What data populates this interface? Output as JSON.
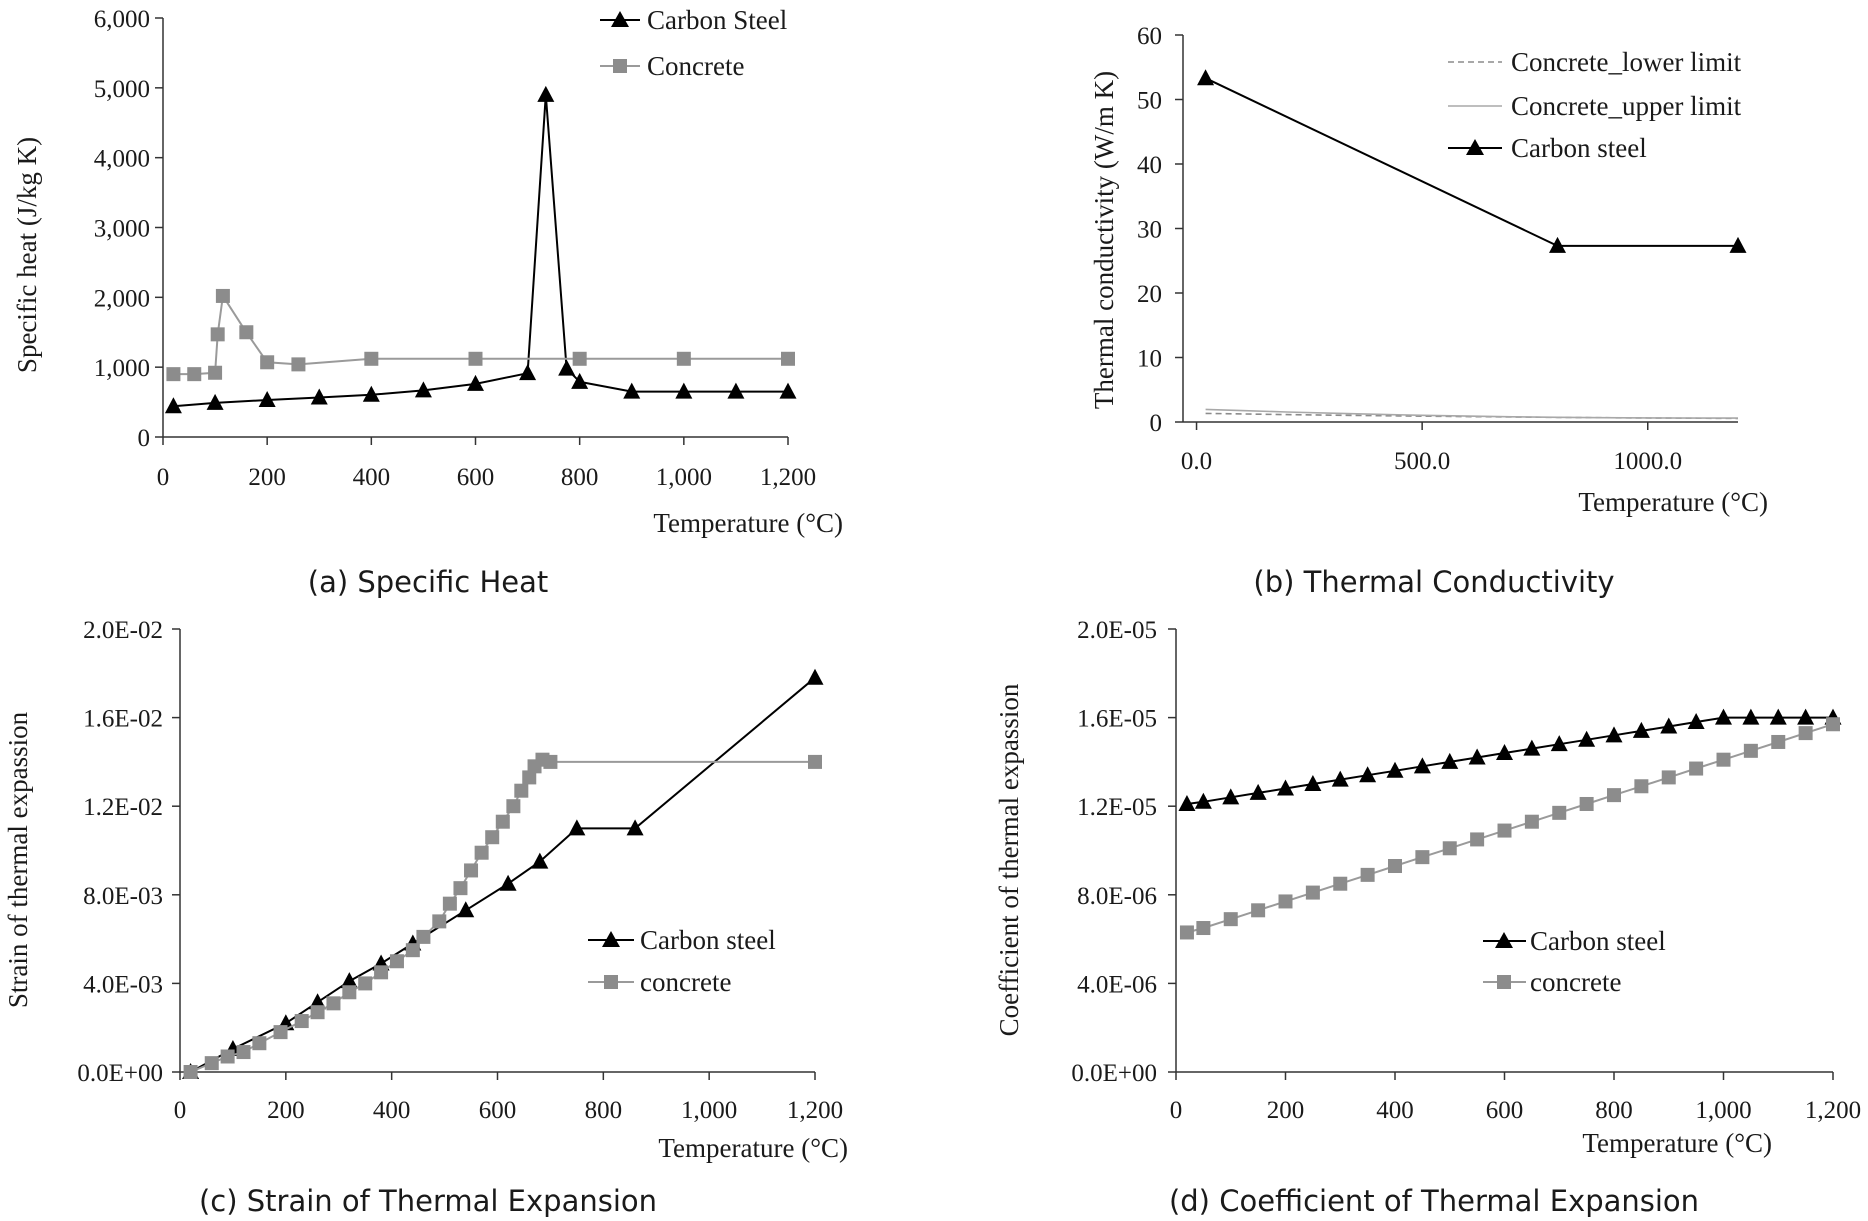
{
  "colors": {
    "steel": "#000000",
    "concrete_marker": "#8c8c8c",
    "concrete_line": "#9a9a9a",
    "concrete_lower": "#8c8c8c",
    "concrete_upper": "#a8a8a8",
    "axis": "#333333"
  },
  "chart_data": [
    {
      "id": "a",
      "type": "line",
      "caption": "(a) Specific Heat",
      "xlabel": "Temperature (°C)",
      "ylabel": "Specific heat (J/kg K)",
      "xlim": [
        0,
        1200
      ],
      "ylim": [
        0,
        6000
      ],
      "xticks": [
        {
          "v": 0,
          "label": "0"
        },
        {
          "v": 200,
          "label": "200"
        },
        {
          "v": 400,
          "label": "400"
        },
        {
          "v": 600,
          "label": "600"
        },
        {
          "v": 800,
          "label": "800"
        },
        {
          "v": 1000,
          "label": "1,000"
        },
        {
          "v": 1200,
          "label": "1,200"
        }
      ],
      "yticks": [
        {
          "v": 0,
          "label": "0"
        },
        {
          "v": 1000,
          "label": "1,000"
        },
        {
          "v": 2000,
          "label": "2,000"
        },
        {
          "v": 3000,
          "label": "3,000"
        },
        {
          "v": 4000,
          "label": "4,000"
        },
        {
          "v": 5000,
          "label": "5,000"
        },
        {
          "v": 6000,
          "label": "6,000"
        }
      ],
      "legend_position": "top-right",
      "series": [
        {
          "name": "Carbon Steel",
          "marker": "triangle",
          "color_key": "steel",
          "x": [
            20,
            100,
            200,
            300,
            400,
            500,
            600,
            700,
            735,
            775,
            800,
            900,
            1000,
            1100,
            1200
          ],
          "y": [
            440,
            488,
            530,
            565,
            605,
            667,
            760,
            914,
            4900,
            980,
            790,
            650,
            650,
            650,
            650
          ]
        },
        {
          "name": "Concrete",
          "marker": "square",
          "color_key": "concrete_marker",
          "x": [
            20,
            60,
            100,
            105,
            115,
            160,
            200,
            260,
            400,
            600,
            800,
            1000,
            1200
          ],
          "y": [
            900,
            900,
            920,
            1470,
            2020,
            1500,
            1070,
            1040,
            1120,
            1120,
            1120,
            1120,
            1120
          ]
        }
      ]
    },
    {
      "id": "b",
      "type": "line",
      "caption": "(b) Thermal Conductivity",
      "xlabel": "Temperature (°C)",
      "ylabel": "Thermal conductivity (W/m K)",
      "xlim": [
        -30,
        1200
      ],
      "ylim": [
        0,
        60
      ],
      "xticks": [
        {
          "v": 0,
          "label": "0.0"
        },
        {
          "v": 500,
          "label": "500.0"
        },
        {
          "v": 1000,
          "label": "1000.0"
        }
      ],
      "yticks": [
        {
          "v": 0,
          "label": "0"
        },
        {
          "v": 10,
          "label": "10"
        },
        {
          "v": 20,
          "label": "20"
        },
        {
          "v": 30,
          "label": "30"
        },
        {
          "v": 40,
          "label": "40"
        },
        {
          "v": 50,
          "label": "50"
        },
        {
          "v": 60,
          "label": "60"
        }
      ],
      "legend_position": "top-right",
      "series": [
        {
          "name": "Concrete_lower limit",
          "marker": "none",
          "dash": true,
          "color_key": "concrete_lower",
          "x": [
            20,
            200,
            400,
            600,
            800,
            1000,
            1200
          ],
          "y": [
            1.33,
            1.14,
            0.97,
            0.83,
            0.71,
            0.62,
            0.56
          ]
        },
        {
          "name": "Concrete_upper limit",
          "marker": "none",
          "dash": false,
          "color_key": "concrete_upper",
          "x": [
            20,
            100,
            200,
            300,
            400,
            500,
            600,
            700,
            800,
            900,
            1000,
            1100,
            1200
          ],
          "y": [
            1.95,
            1.77,
            1.55,
            1.36,
            1.19,
            1.04,
            0.92,
            0.81,
            0.73,
            0.67,
            0.63,
            0.61,
            0.6
          ]
        },
        {
          "name": "Carbon steel",
          "marker": "triangle",
          "color_key": "steel",
          "x": [
            20,
            800,
            1200
          ],
          "y": [
            53.3,
            27.3,
            27.3
          ]
        }
      ]
    },
    {
      "id": "c",
      "type": "line",
      "caption": "(c) Strain of Thermal Expansion",
      "xlabel": "Temperature (°C)",
      "ylabel": "Strain of thermal expassion",
      "xlim": [
        0,
        1200
      ],
      "ylim": [
        0,
        0.02
      ],
      "xticks": [
        {
          "v": 0,
          "label": "0"
        },
        {
          "v": 200,
          "label": "200"
        },
        {
          "v": 400,
          "label": "400"
        },
        {
          "v": 600,
          "label": "600"
        },
        {
          "v": 800,
          "label": "800"
        },
        {
          "v": 1000,
          "label": "1,000"
        },
        {
          "v": 1200,
          "label": "1,200"
        }
      ],
      "yticks": [
        {
          "v": 0,
          "label": "0.0E+00"
        },
        {
          "v": 0.004,
          "label": "4.0E-03"
        },
        {
          "v": 0.008,
          "label": "8.0E-03"
        },
        {
          "v": 0.012,
          "label": "1.2E-02"
        },
        {
          "v": 0.016,
          "label": "1.6E-02"
        },
        {
          "v": 0.02,
          "label": "2.0E-02"
        }
      ],
      "legend_position": "bottom-right",
      "series": [
        {
          "name": "Carbon steel",
          "marker": "triangle",
          "color_key": "steel",
          "x": [
            20,
            100,
            200,
            260,
            320,
            380,
            440,
            540,
            620,
            680,
            750,
            860,
            1200
          ],
          "y": [
            0.0,
            0.00104,
            0.0022,
            0.00315,
            0.0041,
            0.0049,
            0.0058,
            0.0073,
            0.0085,
            0.0095,
            0.011,
            0.011,
            0.0178
          ]
        },
        {
          "name": "concrete",
          "marker": "square",
          "color_key": "concrete_marker",
          "x": [
            20,
            60,
            90,
            120,
            150,
            190,
            230,
            260,
            290,
            320,
            350,
            380,
            410,
            440,
            460,
            490,
            510,
            530,
            550,
            570,
            590,
            610,
            630,
            645,
            660,
            670,
            685,
            700,
            1200
          ],
          "y": [
            0.0,
            0.0004,
            0.0007,
            0.0009,
            0.0013,
            0.0018,
            0.0023,
            0.0027,
            0.0031,
            0.0036,
            0.004,
            0.0045,
            0.005,
            0.0055,
            0.0061,
            0.0068,
            0.0076,
            0.0083,
            0.0091,
            0.0099,
            0.0106,
            0.0113,
            0.012,
            0.0127,
            0.0133,
            0.0138,
            0.0141,
            0.014,
            0.014
          ]
        }
      ]
    },
    {
      "id": "d",
      "type": "line",
      "caption": "(d) Coefficient of Thermal Expansion",
      "xlabel": "Temperature (°C)",
      "ylabel": "Coefficient of thermal expassion",
      "xlim": [
        0,
        1200
      ],
      "ylim": [
        0,
        2e-05
      ],
      "xticks": [
        {
          "v": 0,
          "label": "0"
        },
        {
          "v": 200,
          "label": "200"
        },
        {
          "v": 400,
          "label": "400"
        },
        {
          "v": 600,
          "label": "600"
        },
        {
          "v": 800,
          "label": "800"
        },
        {
          "v": 1000,
          "label": "1,000"
        },
        {
          "v": 1200,
          "label": "1,200"
        }
      ],
      "yticks": [
        {
          "v": 0,
          "label": "0.0E+00"
        },
        {
          "v": 4e-06,
          "label": "4.0E-06"
        },
        {
          "v": 8e-06,
          "label": "8.0E-06"
        },
        {
          "v": 1.2e-05,
          "label": "1.2E-05"
        },
        {
          "v": 1.6e-05,
          "label": "1.6E-05"
        },
        {
          "v": 2e-05,
          "label": "2.0E-05"
        }
      ],
      "legend_position": "bottom-right",
      "series": [
        {
          "name": "Carbon steel",
          "marker": "triangle",
          "color_key": "steel",
          "x": [
            20,
            50,
            100,
            150,
            200,
            250,
            300,
            350,
            400,
            450,
            500,
            550,
            600,
            650,
            700,
            750,
            800,
            850,
            900,
            950,
            1000,
            1050,
            1100,
            1150,
            1200
          ],
          "y": [
            1.21e-05,
            1.22e-05,
            1.24e-05,
            1.26e-05,
            1.28e-05,
            1.3e-05,
            1.32e-05,
            1.34e-05,
            1.36e-05,
            1.38e-05,
            1.4e-05,
            1.42e-05,
            1.44e-05,
            1.46e-05,
            1.48e-05,
            1.5e-05,
            1.52e-05,
            1.54e-05,
            1.56e-05,
            1.58e-05,
            1.6e-05,
            1.6e-05,
            1.6e-05,
            1.6e-05,
            1.6e-05
          ]
        },
        {
          "name": "concrete",
          "marker": "square",
          "color_key": "concrete_marker",
          "x": [
            20,
            50,
            100,
            150,
            200,
            250,
            300,
            350,
            400,
            450,
            500,
            550,
            600,
            650,
            700,
            750,
            800,
            850,
            900,
            950,
            1000,
            1050,
            1100,
            1150,
            1200
          ],
          "y": [
            6.3e-06,
            6.5e-06,
            6.9e-06,
            7.3e-06,
            7.7e-06,
            8.1e-06,
            8.5e-06,
            8.9e-06,
            9.3e-06,
            9.7e-06,
            1.01e-05,
            1.05e-05,
            1.09e-05,
            1.13e-05,
            1.17e-05,
            1.21e-05,
            1.25e-05,
            1.29e-05,
            1.33e-05,
            1.37e-05,
            1.41e-05,
            1.45e-05,
            1.49e-05,
            1.53e-05,
            1.57e-05
          ]
        }
      ]
    }
  ]
}
